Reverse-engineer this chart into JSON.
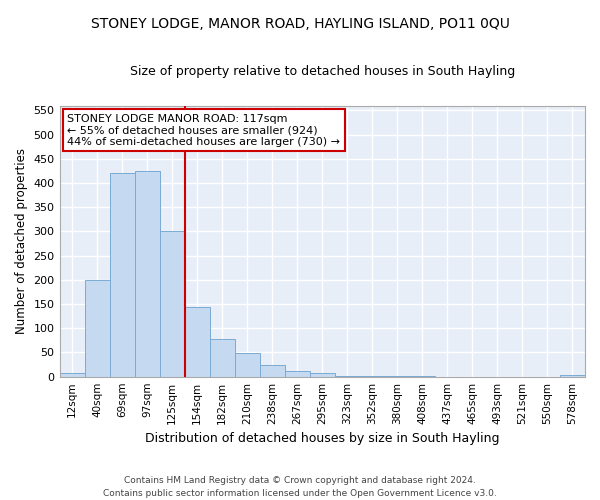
{
  "title1": "STONEY LODGE, MANOR ROAD, HAYLING ISLAND, PO11 0QU",
  "title2": "Size of property relative to detached houses in South Hayling",
  "xlabel": "Distribution of detached houses by size in South Hayling",
  "ylabel": "Number of detached properties",
  "categories": [
    "12sqm",
    "40sqm",
    "69sqm",
    "97sqm",
    "125sqm",
    "154sqm",
    "182sqm",
    "210sqm",
    "238sqm",
    "267sqm",
    "295sqm",
    "323sqm",
    "352sqm",
    "380sqm",
    "408sqm",
    "437sqm",
    "465sqm",
    "493sqm",
    "521sqm",
    "550sqm",
    "578sqm"
  ],
  "values": [
    8,
    200,
    420,
    425,
    300,
    143,
    77,
    48,
    24,
    12,
    8,
    2,
    2,
    1,
    1,
    0,
    0,
    0,
    0,
    0,
    3
  ],
  "bar_color": "#c5d9f0",
  "bar_edge_color": "#7aaad4",
  "vline_x": 4.5,
  "vline_color": "#cc0000",
  "annotation_text": "STONEY LODGE MANOR ROAD: 117sqm\n← 55% of detached houses are smaller (924)\n44% of semi-detached houses are larger (730) →",
  "annotation_box_color": "#ffffff",
  "annotation_box_edge": "#cc0000",
  "ylim": [
    0,
    560
  ],
  "yticks": [
    0,
    50,
    100,
    150,
    200,
    250,
    300,
    350,
    400,
    450,
    500,
    550
  ],
  "footer": "Contains HM Land Registry data © Crown copyright and database right 2024.\nContains public sector information licensed under the Open Government Licence v3.0.",
  "bg_color": "#ffffff",
  "plot_bg_color": "#e8eef8",
  "grid_color": "#ffffff"
}
